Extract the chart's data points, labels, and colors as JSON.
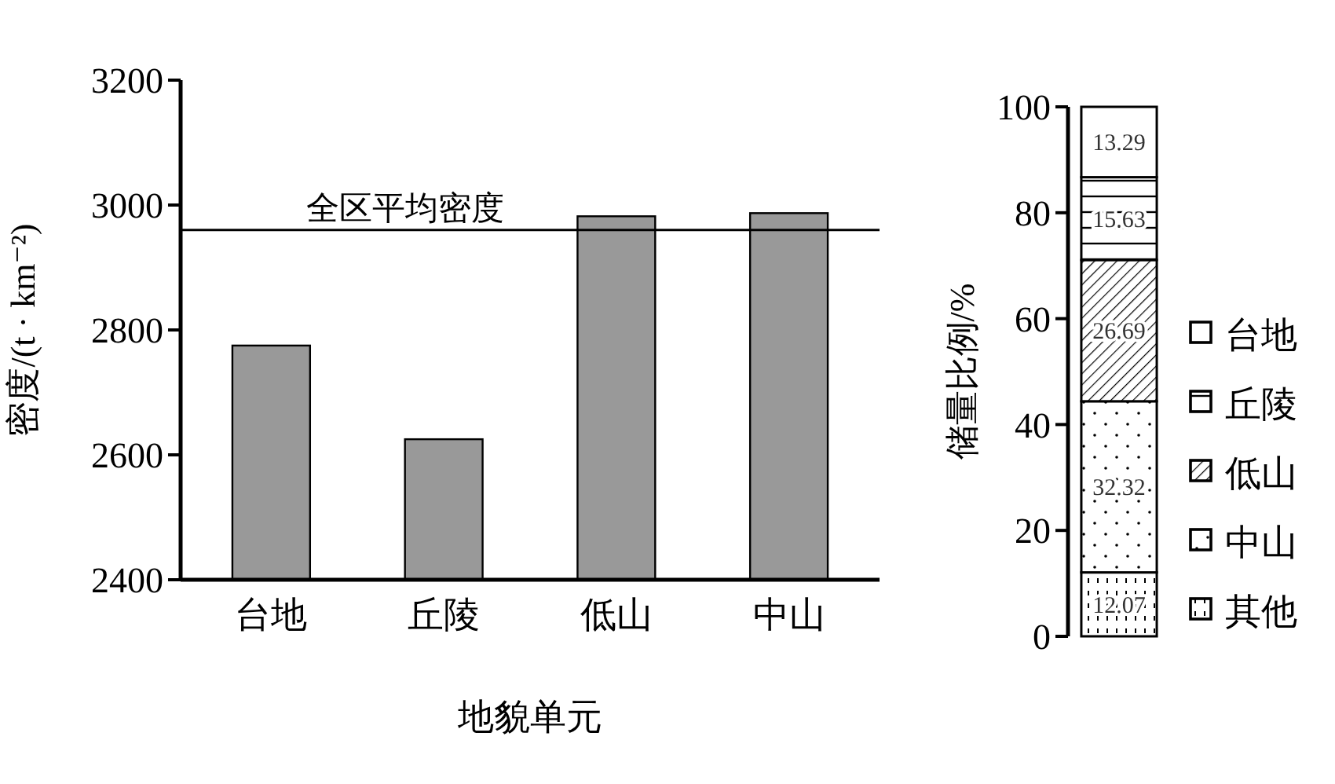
{
  "chart_data": [
    {
      "type": "bar",
      "categories": [
        "台地",
        "丘陵",
        "低山",
        "中山"
      ],
      "values": [
        2775,
        2625,
        2982,
        2987
      ],
      "color": "#999999",
      "ylim": [
        2400,
        3200
      ],
      "yticks": [
        2400,
        2600,
        2800,
        3000,
        3200
      ],
      "xlabel": "地貌单元",
      "ylabel": "密度/(t · km⁻²)",
      "ref_lines": [
        {
          "axis": "y",
          "value": 2960,
          "label": "全区平均密度",
          "color": "#000000"
        }
      ]
    },
    {
      "type": "bar",
      "stacked": true,
      "categories": [
        null
      ],
      "series": [
        {
          "name": "其他",
          "color": "#ffffff",
          "values": [
            12.07
          ]
        },
        {
          "name": "中山",
          "color": "#ffffff",
          "values": [
            32.32
          ]
        },
        {
          "name": "低山",
          "color": "#ffffff",
          "values": [
            26.69
          ]
        },
        {
          "name": "丘陵",
          "color": "#ffffff",
          "values": [
            15.63
          ]
        },
        {
          "name": "台地",
          "color": "#ffffff",
          "values": [
            13.29
          ]
        }
      ],
      "ylim": [
        0,
        100
      ],
      "yticks": [
        0,
        20,
        40,
        60,
        80,
        100
      ],
      "ylabel": "储量比例/%",
      "data_labels": true,
      "legend": "right"
    }
  ]
}
